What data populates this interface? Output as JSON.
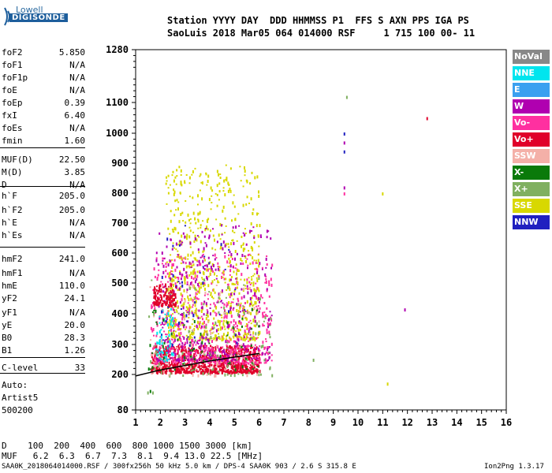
{
  "logo": {
    "line1": "Lowell",
    "line2": "DIGISONDE"
  },
  "header": {
    "row1": "Station YYYY DAY  DDD HHMMSS P1  FFS S AXN PPS IGA PS",
    "row2": "SaoLuis 2018 Mar05 064 014000 RSF     1 715 100 00- 11"
  },
  "params": [
    {
      "name": "foF2",
      "value": "5.850"
    },
    {
      "name": "foF1",
      "value": "N/A"
    },
    {
      "name": "foF1p",
      "value": "N/A"
    },
    {
      "name": "foE",
      "value": "N/A"
    },
    {
      "name": "foEp",
      "value": "0.39"
    },
    {
      "name": "fxI",
      "value": "6.40"
    },
    {
      "name": "foEs",
      "value": "N/A"
    },
    {
      "name": "fmin",
      "value": "1.60"
    },
    {
      "name": "MUF(D)",
      "value": "22.50"
    },
    {
      "name": "M(D)",
      "value": "3.85"
    },
    {
      "name": "D",
      "value": "N/A"
    },
    {
      "name": "h`F",
      "value": "205.0"
    },
    {
      "name": "h`F2",
      "value": "205.0"
    },
    {
      "name": "h`E",
      "value": "N/A"
    },
    {
      "name": "h`Es",
      "value": "N/A"
    },
    {
      "name": "hmF2",
      "value": "241.0"
    },
    {
      "name": "hmF1",
      "value": "N/A"
    },
    {
      "name": "hmE",
      "value": "110.0"
    },
    {
      "name": "yF2",
      "value": "24.1"
    },
    {
      "name": "yF1",
      "value": "N/A"
    },
    {
      "name": "yE",
      "value": "20.0"
    },
    {
      "name": "B0",
      "value": "28.3"
    },
    {
      "name": "B1",
      "value": "1.26"
    },
    {
      "name": "C-level",
      "value": "33"
    }
  ],
  "auto": {
    "line1": "Auto:",
    "line2": "Artist5",
    "line3": "500200"
  },
  "legend": [
    {
      "label": "NoVal",
      "color": "#888888"
    },
    {
      "label": "NNE",
      "color": "#00e5ee"
    },
    {
      "label": "E",
      "color": "#3aa0f0"
    },
    {
      "label": "W",
      "color": "#b000b0"
    },
    {
      "label": "Vo-",
      "color": "#ff30a0"
    },
    {
      "label": "Vo+",
      "color": "#e0002a"
    },
    {
      "label": "SSW",
      "color": "#f4b0a8"
    },
    {
      "label": "X-",
      "color": "#0a7a0a"
    },
    {
      "label": "X+",
      "color": "#80b060"
    },
    {
      "label": "SSE",
      "color": "#d8d800"
    },
    {
      "label": "NNW",
      "color": "#2020c0"
    }
  ],
  "footer": {
    "d_row": "D    100  200  400  600  800 1000 1500 3000 [km]",
    "muf_row": "MUF   6.2  6.3  6.7  7.3  8.1  9.4 13.0 22.5 [MHz]",
    "bottom_left": "SAA0K_2018064014000.RSF / 300fx256h 50 kHz 5.0 km / DPS-4 SAA0K 903 / 2.6 S 315.8 E",
    "bottom_right": "Ion2Png 1.3.17"
  },
  "chart_data": {
    "type": "scatter",
    "x_ticks": [
      1,
      2,
      3,
      4,
      5,
      6,
      7,
      8,
      9,
      10,
      11,
      12,
      13,
      14,
      15,
      16
    ],
    "xlim": [
      1,
      16
    ],
    "y_ticks": [
      80,
      200,
      300,
      400,
      500,
      600,
      700,
      800,
      900,
      1000,
      1100,
      1280
    ],
    "ylim": [
      80,
      1280
    ],
    "trace": {
      "x": [
        1.0,
        2.0,
        3.0,
        4.0,
        5.0,
        6.0
      ],
      "y": [
        195,
        215,
        230,
        245,
        258,
        270
      ]
    },
    "clusters": [
      {
        "legend": "Vo+",
        "x": [
          1.6,
          6.0
        ],
        "y": [
          210,
          300
        ],
        "n": 900
      },
      {
        "legend": "Vo-",
        "x": [
          1.6,
          6.5
        ],
        "y": [
          240,
          600
        ],
        "n": 600
      },
      {
        "legend": "SSE",
        "x": [
          2.2,
          6.0
        ],
        "y": [
          320,
          900
        ],
        "n": 700
      },
      {
        "legend": "W",
        "x": [
          1.8,
          6.5
        ],
        "y": [
          250,
          700
        ],
        "n": 350
      },
      {
        "legend": "NNE",
        "x": [
          1.8,
          2.5
        ],
        "y": [
          250,
          420
        ],
        "n": 60
      },
      {
        "legend": "X+",
        "x": [
          1.5,
          6.5
        ],
        "y": [
          200,
          520
        ],
        "n": 120
      },
      {
        "legend": "X-",
        "x": [
          1.5,
          6.0
        ],
        "y": [
          220,
          420
        ],
        "n": 60
      },
      {
        "legend": "SSW",
        "x": [
          1.5,
          6.0
        ],
        "y": [
          200,
          500
        ],
        "n": 80
      },
      {
        "legend": "NNW",
        "x": [
          1.6,
          5.5
        ],
        "y": [
          300,
          700
        ],
        "n": 40
      },
      {
        "legend": "Vo+",
        "x": [
          1.7,
          2.6
        ],
        "y": [
          430,
          500
        ],
        "n": 120
      }
    ],
    "points": [
      {
        "x": 9.45,
        "y": 1000,
        "legend": "NNW"
      },
      {
        "x": 9.45,
        "y": 970,
        "legend": "W"
      },
      {
        "x": 9.45,
        "y": 940,
        "legend": "NNW"
      },
      {
        "x": 9.45,
        "y": 820,
        "legend": "W"
      },
      {
        "x": 9.45,
        "y": 800,
        "legend": "Vo-"
      },
      {
        "x": 9.55,
        "y": 1120,
        "legend": "X+"
      },
      {
        "x": 11.0,
        "y": 800,
        "legend": "SSE"
      },
      {
        "x": 11.2,
        "y": 170,
        "legend": "SSE"
      },
      {
        "x": 11.9,
        "y": 415,
        "legend": "W"
      },
      {
        "x": 12.8,
        "y": 1050,
        "legend": "Vo+"
      },
      {
        "x": 8.2,
        "y": 250,
        "legend": "X+"
      },
      {
        "x": 1.5,
        "y": 140,
        "legend": "X+"
      },
      {
        "x": 1.6,
        "y": 145,
        "legend": "X-"
      },
      {
        "x": 1.7,
        "y": 140,
        "legend": "X+"
      }
    ]
  }
}
